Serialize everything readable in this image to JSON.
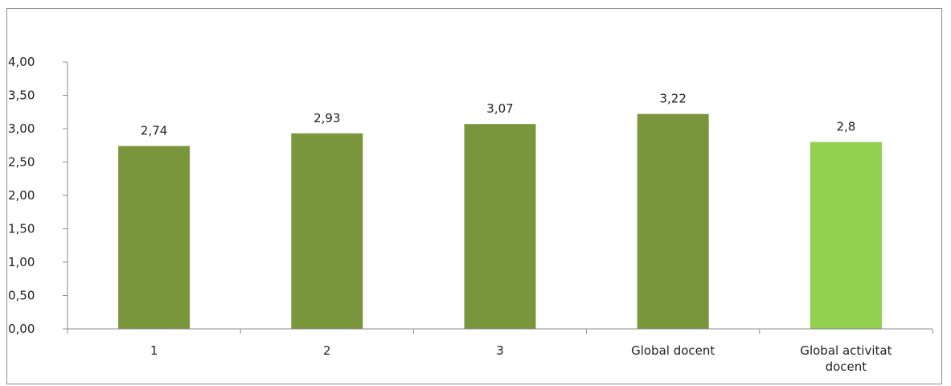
{
  "chart_data": {
    "type": "bar",
    "title": "",
    "xlabel": "",
    "ylabel": "",
    "ylim": [
      0,
      4
    ],
    "y_ticks": [
      "0,00",
      "0,50",
      "1,00",
      "1,50",
      "2,00",
      "2,50",
      "3,00",
      "3,50",
      "4,00"
    ],
    "categories": [
      "1",
      "2",
      "3",
      "Global docent",
      "Global activitat docent"
    ],
    "category_lines": [
      [
        "1"
      ],
      [
        "2"
      ],
      [
        "3"
      ],
      [
        "Global docent"
      ],
      [
        "Global activitat",
        "docent"
      ]
    ],
    "values": [
      2.74,
      2.93,
      3.07,
      3.22,
      2.8
    ],
    "data_labels": [
      "2,74",
      "2,93",
      "3,07",
      "3,22",
      "2,8"
    ],
    "bar_colors": [
      "#7a963d",
      "#7a963d",
      "#7a963d",
      "#7a963d",
      "#92d050"
    ],
    "grid": false,
    "legend": "none"
  }
}
